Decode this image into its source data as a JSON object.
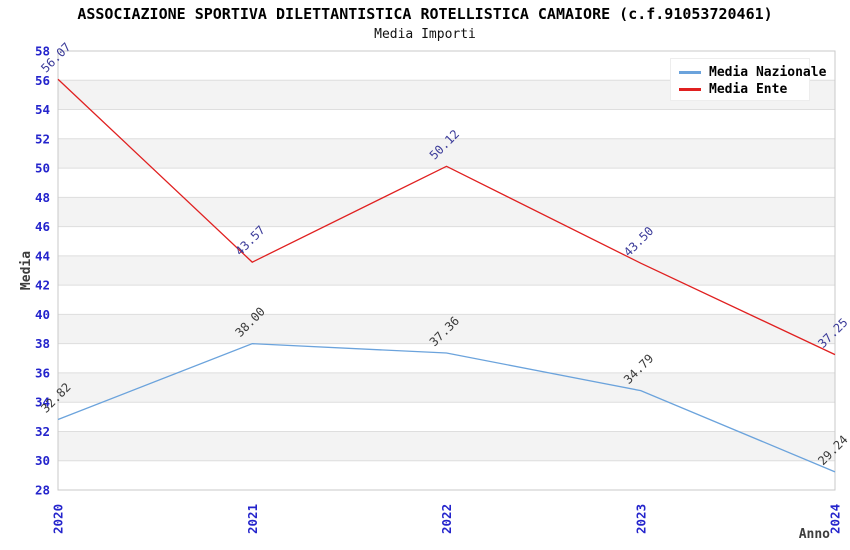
{
  "header": {
    "title": "ASSOCIAZIONE SPORTIVA DILETTANTISTICA ROTELLISTICA CAMAIORE (c.f.91053720461)",
    "subtitle": "Media Importi"
  },
  "legend": {
    "items": [
      {
        "label": "Media Nazionale",
        "color": "#6ba3dc"
      },
      {
        "label": "Media Ente",
        "color": "#e02020"
      }
    ]
  },
  "chart_data": {
    "type": "line",
    "title": "ASSOCIAZIONE SPORTIVA DILETTANTISTICA ROTELLISTICA CAMAIORE (c.f.91053720461)",
    "subtitle": "Media Importi",
    "categories": [
      "2020",
      "2021",
      "2022",
      "2023",
      "2024"
    ],
    "series": [
      {
        "name": "Media Nazionale",
        "values": [
          32.82,
          38.0,
          37.36,
          34.79,
          29.24
        ],
        "color": "#6ba3dc",
        "label_color": "#3a3a3a"
      },
      {
        "name": "Media Ente",
        "values": [
          56.07,
          43.57,
          50.12,
          43.5,
          37.25
        ],
        "color": "#e02020",
        "label_color": "#3b3b99"
      }
    ],
    "xlabel": "Anno",
    "ylabel": "Media",
    "ylim": [
      28,
      58
    ],
    "ytick_step": 2,
    "grid": true,
    "legend_position": "top-right",
    "style_colors": {
      "tick_label": "#2424cc",
      "axis_title": "#3d3d3d",
      "band": "#f3f3f3",
      "gridline": "#dedede",
      "frame": "#c9c9c9"
    }
  }
}
